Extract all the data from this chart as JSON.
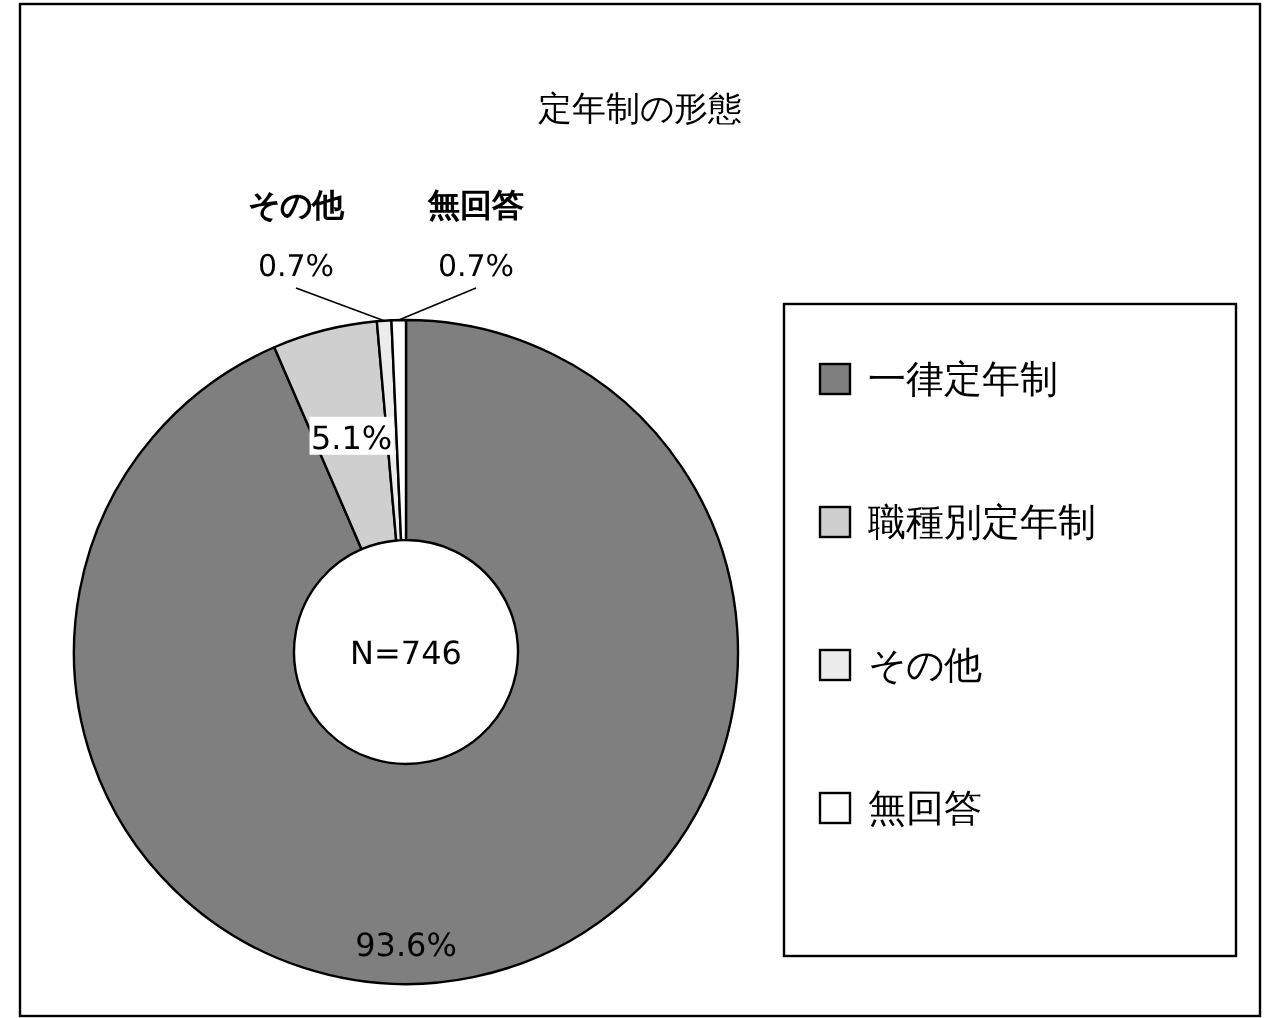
{
  "chart_data": {
    "type": "donut",
    "title": "定年制の形態",
    "categories": [
      "一律定年制",
      "職種別定年制",
      "その他",
      "無回答"
    ],
    "values": [
      93.6,
      5.1,
      0.7,
      0.7
    ],
    "colors": [
      "#7f7f7f",
      "#cfcfcf",
      "#ececec",
      "#ffffff"
    ],
    "value_labels": [
      "93.6%",
      "5.1%",
      "0.7%",
      "0.7%"
    ],
    "annotations": [
      "N=746"
    ],
    "legend": "right"
  }
}
